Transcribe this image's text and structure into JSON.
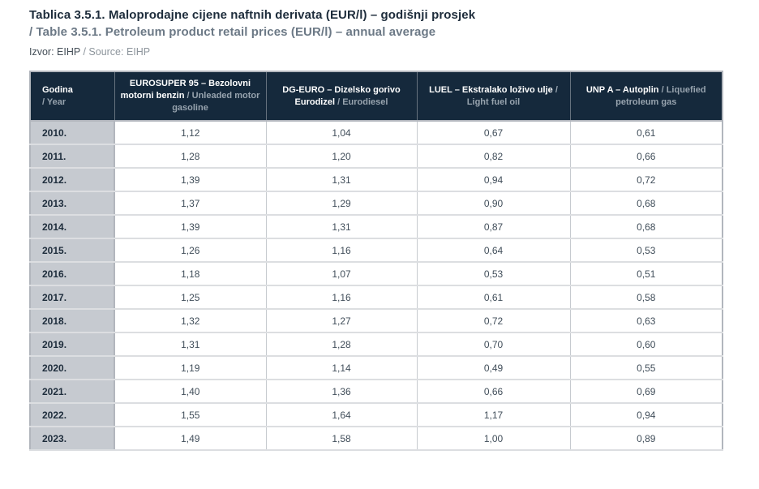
{
  "header": {
    "title_hr": "Tablica 3.5.1. Maloprodajne cijene naftnih derivata (EUR/l) – godišnji prosjek",
    "title_en": "/ Table 3.5.1. Petroleum product retail prices (EUR/l) – annual average",
    "source_hr": "Izvor: EIHP",
    "source_sep": " / ",
    "source_en": "Source: EIHP"
  },
  "table": {
    "columns": [
      {
        "hr": "Godina",
        "en": "/ Year"
      },
      {
        "hr": "EUROSUPER 95 – Bezolovni motorni benzin",
        "en": "/ Unleaded motor gasoline"
      },
      {
        "hr": "DG-EURO – Dizelsko gorivo Eurodizel",
        "en": "/ Eurodiesel"
      },
      {
        "hr": "LUEL – Ekstralako loživo ulje",
        "en": "/ Light fuel oil"
      },
      {
        "hr": "UNP A – Autoplin",
        "en": "/ Liquefied petroleum gas"
      }
    ],
    "rows": [
      {
        "year": "2010.",
        "values": [
          "1,12",
          "1,04",
          "0,67",
          "0,61"
        ]
      },
      {
        "year": "2011.",
        "values": [
          "1,28",
          "1,20",
          "0,82",
          "0,66"
        ]
      },
      {
        "year": "2012.",
        "values": [
          "1,39",
          "1,31",
          "0,94",
          "0,72"
        ]
      },
      {
        "year": "2013.",
        "values": [
          "1,37",
          "1,29",
          "0,90",
          "0,68"
        ]
      },
      {
        "year": "2014.",
        "values": [
          "1,39",
          "1,31",
          "0,87",
          "0,68"
        ]
      },
      {
        "year": "2015.",
        "values": [
          "1,26",
          "1,16",
          "0,64",
          "0,53"
        ]
      },
      {
        "year": "2016.",
        "values": [
          "1,18",
          "1,07",
          "0,53",
          "0,51"
        ]
      },
      {
        "year": "2017.",
        "values": [
          "1,25",
          "1,16",
          "0,61",
          "0,58"
        ]
      },
      {
        "year": "2018.",
        "values": [
          "1,32",
          "1,27",
          "0,72",
          "0,63"
        ]
      },
      {
        "year": "2019.",
        "values": [
          "1,31",
          "1,28",
          "0,70",
          "0,60"
        ]
      },
      {
        "year": "2020.",
        "values": [
          "1,19",
          "1,14",
          "0,49",
          "0,55"
        ]
      },
      {
        "year": "2021.",
        "values": [
          "1,40",
          "1,36",
          "0,66",
          "0,69"
        ]
      },
      {
        "year": "2022.",
        "values": [
          "1,55",
          "1,64",
          "1,17",
          "0,94"
        ]
      },
      {
        "year": "2023.",
        "values": [
          "1,49",
          "1,58",
          "1,00",
          "0,89"
        ]
      }
    ]
  },
  "colors": {
    "header_bg": "#15293c",
    "header_text_hr": "#ffffff",
    "header_text_en": "#97a3ae",
    "year_cell_bg": "#c6cad0",
    "year_text": "#1d2c3b",
    "value_text": "#414e5a",
    "title_hr": "#1d2c3b",
    "title_en": "#6c7986",
    "source_hr": "#454f58",
    "source_en": "#8d959c",
    "border_outer": "#b2b6bd",
    "border_vertical": "#c6cacf",
    "border_horizontal": "#dcdee1",
    "header_divider": "#66727e"
  }
}
